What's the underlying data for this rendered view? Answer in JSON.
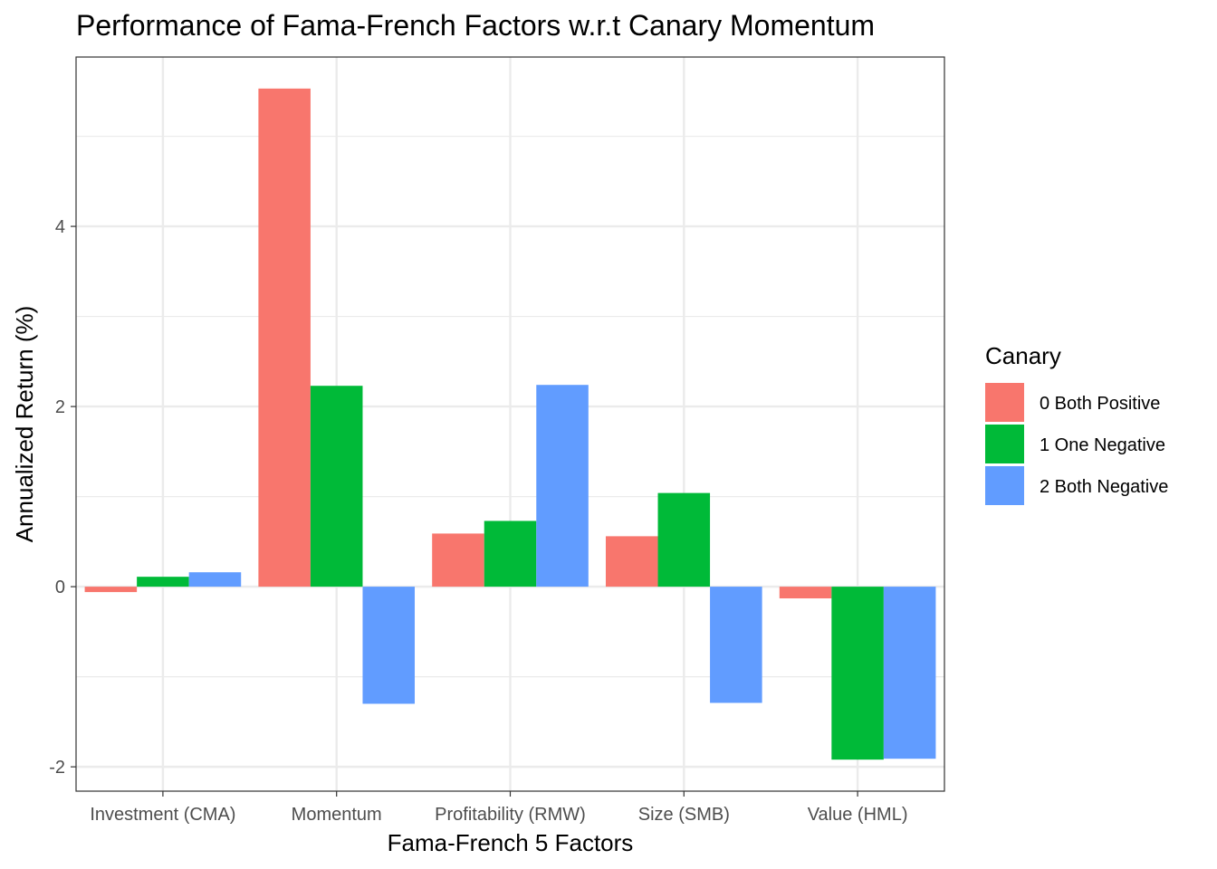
{
  "chart_data": {
    "type": "bar",
    "title": "Performance of Fama-French Factors w.r.t Canary Momentum",
    "xlabel": "Fama-French 5 Factors",
    "ylabel": "Annualized Return (%)",
    "categories": [
      "Investment (CMA)",
      "Momentum",
      "Profitability (RMW)",
      "Size (SMB)",
      "Value (HML)"
    ],
    "series": [
      {
        "name": "0 Both Positive",
        "color": "#F8766D",
        "values": [
          -0.06,
          5.53,
          0.59,
          0.56,
          -0.13
        ]
      },
      {
        "name": "1 One Negative",
        "color": "#00BA38",
        "values": [
          0.11,
          2.23,
          0.73,
          1.04,
          -1.92
        ]
      },
      {
        "name": "2 Both Negative",
        "color": "#619CFF",
        "values": [
          0.16,
          -1.3,
          2.24,
          -1.29,
          -1.91
        ]
      }
    ],
    "ylim": [
      -2.27,
      5.88
    ],
    "yticks": [
      -2,
      0,
      2,
      4
    ],
    "grid": true,
    "legend": {
      "title": "Canary",
      "placement": "right"
    }
  }
}
